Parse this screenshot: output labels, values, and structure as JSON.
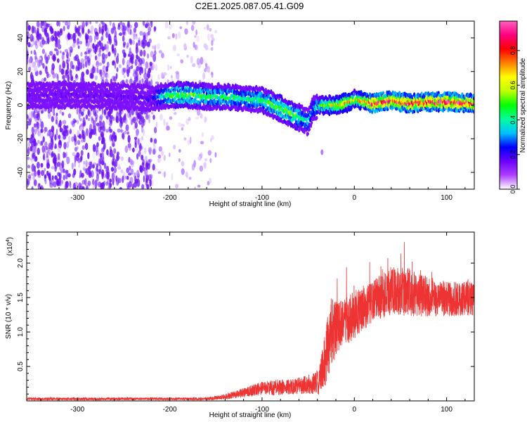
{
  "title": "C2E1.2025.087.05.41.G09",
  "chart_data": [
    {
      "type": "heatmap",
      "title": "C2E1.2025.087.05.41.G09",
      "xlabel": "Height of straight line (km)",
      "ylabel": "Frequency (Hz)",
      "xlim": [
        -355,
        130
      ],
      "ylim": [
        -50,
        50
      ],
      "xticks": [
        -300,
        -200,
        -100,
        0,
        100
      ],
      "yticks": [
        -40,
        -20,
        0,
        20,
        40
      ],
      "colorbar": {
        "label": "Normalized spectral amplitude",
        "range": [
          0,
          0.97
        ],
        "ticks": [
          0.0,
          0.2,
          0.4,
          0.6,
          0.8
        ],
        "tick_labels": [
          "0.0",
          "0.2",
          "0.4",
          "0.6",
          "0.8"
        ],
        "colormap": [
          "#ffffff",
          "#b040ff",
          "#6a00ff",
          "#0000ff",
          "#00c0ff",
          "#00ffa0",
          "#00ff00",
          "#c0ff00",
          "#ffff00",
          "#ff8000",
          "#ff0000",
          "#ff0080",
          "#ff60c0"
        ]
      },
      "ridge": {
        "x": [
          -355,
          -300,
          -250,
          -220,
          -200,
          -180,
          -160,
          -140,
          -120,
          -100,
          -80,
          -65,
          -50,
          -45,
          -35,
          -20,
          -5,
          0,
          20,
          40,
          60,
          80,
          100,
          130
        ],
        "frequency": [
          6,
          6,
          5,
          4,
          6,
          6,
          5,
          5,
          4,
          3,
          -2,
          -6,
          -10,
          -2,
          0,
          0,
          2,
          4,
          1,
          3,
          1,
          2,
          2,
          1
        ],
        "peak_amplitude": [
          0.15,
          0.15,
          0.15,
          0.2,
          0.45,
          0.5,
          0.45,
          0.45,
          0.4,
          0.45,
          0.5,
          0.5,
          0.35,
          0.3,
          0.55,
          0.65,
          0.7,
          0.6,
          0.85,
          0.85,
          0.85,
          0.88,
          0.88,
          0.85
        ]
      }
    },
    {
      "type": "line",
      "xlabel": "Height of straight line (km)",
      "ylabel": "SNR (10 * v/v)",
      "y_exponent": "(x10",
      "y_exponent_power": "4",
      "y_exponent_close": ")",
      "xlim": [
        -355,
        130
      ],
      "ylim": [
        0,
        2.45
      ],
      "xticks": [
        -300,
        -200,
        -100,
        0,
        100
      ],
      "yticks": [
        0.5,
        1.0,
        1.5,
        2.0
      ],
      "ytick_labels": [
        "0.5",
        "1.0",
        "1.5",
        "2.0"
      ],
      "color": "#ee3333",
      "envelope": {
        "x": [
          -355,
          -250,
          -160,
          -140,
          -120,
          -100,
          -80,
          -60,
          -45,
          -38,
          -30,
          -25,
          -15,
          0,
          20,
          40,
          60,
          80,
          100,
          130
        ],
        "mean": [
          0.03,
          0.03,
          0.03,
          0.06,
          0.12,
          0.18,
          0.2,
          0.22,
          0.25,
          0.28,
          0.7,
          1.0,
          1.1,
          1.25,
          1.45,
          1.6,
          1.58,
          1.52,
          1.48,
          1.48
        ],
        "spread": [
          0.02,
          0.02,
          0.02,
          0.04,
          0.07,
          0.1,
          0.12,
          0.12,
          0.15,
          0.2,
          0.45,
          0.5,
          0.35,
          0.35,
          0.3,
          0.35,
          0.35,
          0.3,
          0.25,
          0.25
        ]
      }
    }
  ]
}
